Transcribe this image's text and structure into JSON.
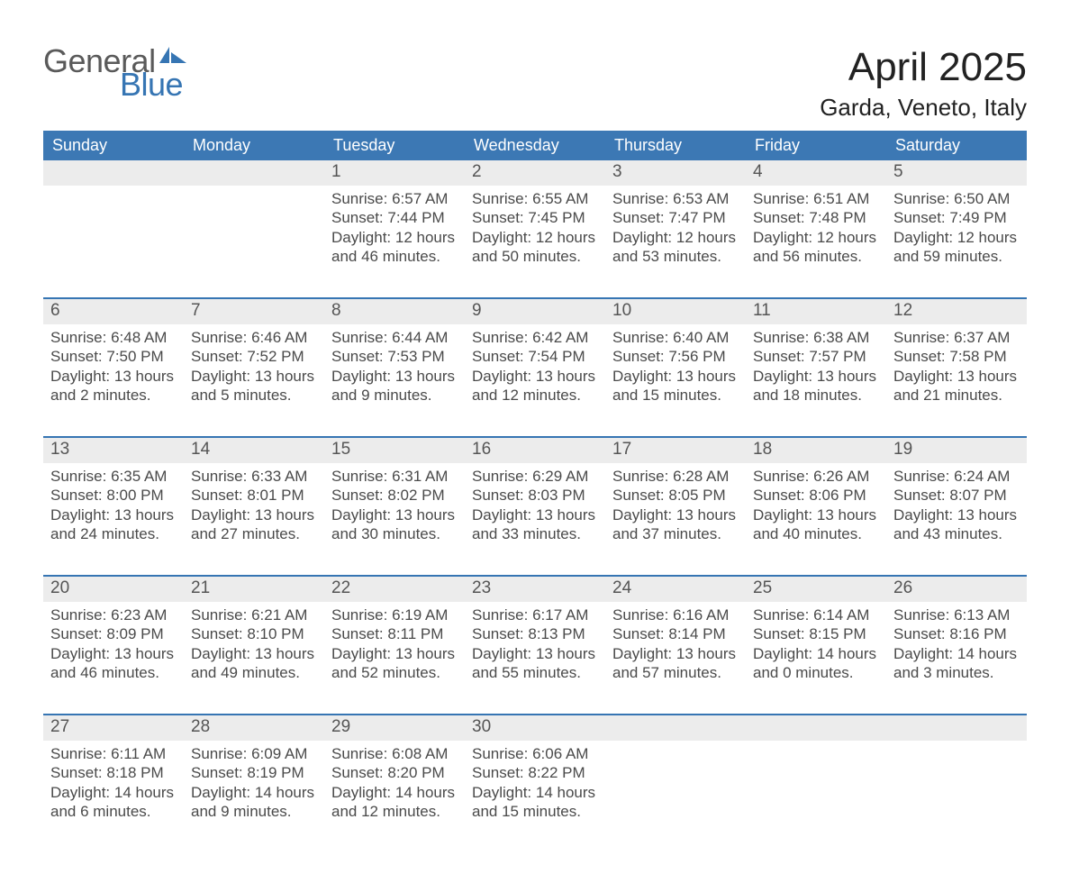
{
  "brand": {
    "word1": "General",
    "word2": "Blue"
  },
  "title": "April 2025",
  "location": "Garda, Veneto, Italy",
  "colors": {
    "header_blue": "#3c78b4",
    "logo_blue": "#3675b3",
    "logo_gray": "#5a5a5a",
    "daynum_bg": "#ececec",
    "row_divider": "#3675b3",
    "text": "#4a4a4a",
    "page_bg": "#ffffff"
  },
  "days_of_week": [
    "Sunday",
    "Monday",
    "Tuesday",
    "Wednesday",
    "Thursday",
    "Friday",
    "Saturday"
  ],
  "weeks": [
    [
      {
        "n": "",
        "lines": []
      },
      {
        "n": "",
        "lines": []
      },
      {
        "n": "1",
        "lines": [
          "Sunrise: 6:57 AM",
          "Sunset: 7:44 PM",
          "Daylight: 12 hours",
          "and 46 minutes."
        ]
      },
      {
        "n": "2",
        "lines": [
          "Sunrise: 6:55 AM",
          "Sunset: 7:45 PM",
          "Daylight: 12 hours",
          "and 50 minutes."
        ]
      },
      {
        "n": "3",
        "lines": [
          "Sunrise: 6:53 AM",
          "Sunset: 7:47 PM",
          "Daylight: 12 hours",
          "and 53 minutes."
        ]
      },
      {
        "n": "4",
        "lines": [
          "Sunrise: 6:51 AM",
          "Sunset: 7:48 PM",
          "Daylight: 12 hours",
          "and 56 minutes."
        ]
      },
      {
        "n": "5",
        "lines": [
          "Sunrise: 6:50 AM",
          "Sunset: 7:49 PM",
          "Daylight: 12 hours",
          "and 59 minutes."
        ]
      }
    ],
    [
      {
        "n": "6",
        "lines": [
          "Sunrise: 6:48 AM",
          "Sunset: 7:50 PM",
          "Daylight: 13 hours",
          "and 2 minutes."
        ]
      },
      {
        "n": "7",
        "lines": [
          "Sunrise: 6:46 AM",
          "Sunset: 7:52 PM",
          "Daylight: 13 hours",
          "and 5 minutes."
        ]
      },
      {
        "n": "8",
        "lines": [
          "Sunrise: 6:44 AM",
          "Sunset: 7:53 PM",
          "Daylight: 13 hours",
          "and 9 minutes."
        ]
      },
      {
        "n": "9",
        "lines": [
          "Sunrise: 6:42 AM",
          "Sunset: 7:54 PM",
          "Daylight: 13 hours",
          "and 12 minutes."
        ]
      },
      {
        "n": "10",
        "lines": [
          "Sunrise: 6:40 AM",
          "Sunset: 7:56 PM",
          "Daylight: 13 hours",
          "and 15 minutes."
        ]
      },
      {
        "n": "11",
        "lines": [
          "Sunrise: 6:38 AM",
          "Sunset: 7:57 PM",
          "Daylight: 13 hours",
          "and 18 minutes."
        ]
      },
      {
        "n": "12",
        "lines": [
          "Sunrise: 6:37 AM",
          "Sunset: 7:58 PM",
          "Daylight: 13 hours",
          "and 21 minutes."
        ]
      }
    ],
    [
      {
        "n": "13",
        "lines": [
          "Sunrise: 6:35 AM",
          "Sunset: 8:00 PM",
          "Daylight: 13 hours",
          "and 24 minutes."
        ]
      },
      {
        "n": "14",
        "lines": [
          "Sunrise: 6:33 AM",
          "Sunset: 8:01 PM",
          "Daylight: 13 hours",
          "and 27 minutes."
        ]
      },
      {
        "n": "15",
        "lines": [
          "Sunrise: 6:31 AM",
          "Sunset: 8:02 PM",
          "Daylight: 13 hours",
          "and 30 minutes."
        ]
      },
      {
        "n": "16",
        "lines": [
          "Sunrise: 6:29 AM",
          "Sunset: 8:03 PM",
          "Daylight: 13 hours",
          "and 33 minutes."
        ]
      },
      {
        "n": "17",
        "lines": [
          "Sunrise: 6:28 AM",
          "Sunset: 8:05 PM",
          "Daylight: 13 hours",
          "and 37 minutes."
        ]
      },
      {
        "n": "18",
        "lines": [
          "Sunrise: 6:26 AM",
          "Sunset: 8:06 PM",
          "Daylight: 13 hours",
          "and 40 minutes."
        ]
      },
      {
        "n": "19",
        "lines": [
          "Sunrise: 6:24 AM",
          "Sunset: 8:07 PM",
          "Daylight: 13 hours",
          "and 43 minutes."
        ]
      }
    ],
    [
      {
        "n": "20",
        "lines": [
          "Sunrise: 6:23 AM",
          "Sunset: 8:09 PM",
          "Daylight: 13 hours",
          "and 46 minutes."
        ]
      },
      {
        "n": "21",
        "lines": [
          "Sunrise: 6:21 AM",
          "Sunset: 8:10 PM",
          "Daylight: 13 hours",
          "and 49 minutes."
        ]
      },
      {
        "n": "22",
        "lines": [
          "Sunrise: 6:19 AM",
          "Sunset: 8:11 PM",
          "Daylight: 13 hours",
          "and 52 minutes."
        ]
      },
      {
        "n": "23",
        "lines": [
          "Sunrise: 6:17 AM",
          "Sunset: 8:13 PM",
          "Daylight: 13 hours",
          "and 55 minutes."
        ]
      },
      {
        "n": "24",
        "lines": [
          "Sunrise: 6:16 AM",
          "Sunset: 8:14 PM",
          "Daylight: 13 hours",
          "and 57 minutes."
        ]
      },
      {
        "n": "25",
        "lines": [
          "Sunrise: 6:14 AM",
          "Sunset: 8:15 PM",
          "Daylight: 14 hours",
          "and 0 minutes."
        ]
      },
      {
        "n": "26",
        "lines": [
          "Sunrise: 6:13 AM",
          "Sunset: 8:16 PM",
          "Daylight: 14 hours",
          "and 3 minutes."
        ]
      }
    ],
    [
      {
        "n": "27",
        "lines": [
          "Sunrise: 6:11 AM",
          "Sunset: 8:18 PM",
          "Daylight: 14 hours",
          "and 6 minutes."
        ]
      },
      {
        "n": "28",
        "lines": [
          "Sunrise: 6:09 AM",
          "Sunset: 8:19 PM",
          "Daylight: 14 hours",
          "and 9 minutes."
        ]
      },
      {
        "n": "29",
        "lines": [
          "Sunrise: 6:08 AM",
          "Sunset: 8:20 PM",
          "Daylight: 14 hours",
          "and 12 minutes."
        ]
      },
      {
        "n": "30",
        "lines": [
          "Sunrise: 6:06 AM",
          "Sunset: 8:22 PM",
          "Daylight: 14 hours",
          "and 15 minutes."
        ]
      },
      {
        "n": "",
        "lines": []
      },
      {
        "n": "",
        "lines": []
      },
      {
        "n": "",
        "lines": []
      }
    ]
  ]
}
